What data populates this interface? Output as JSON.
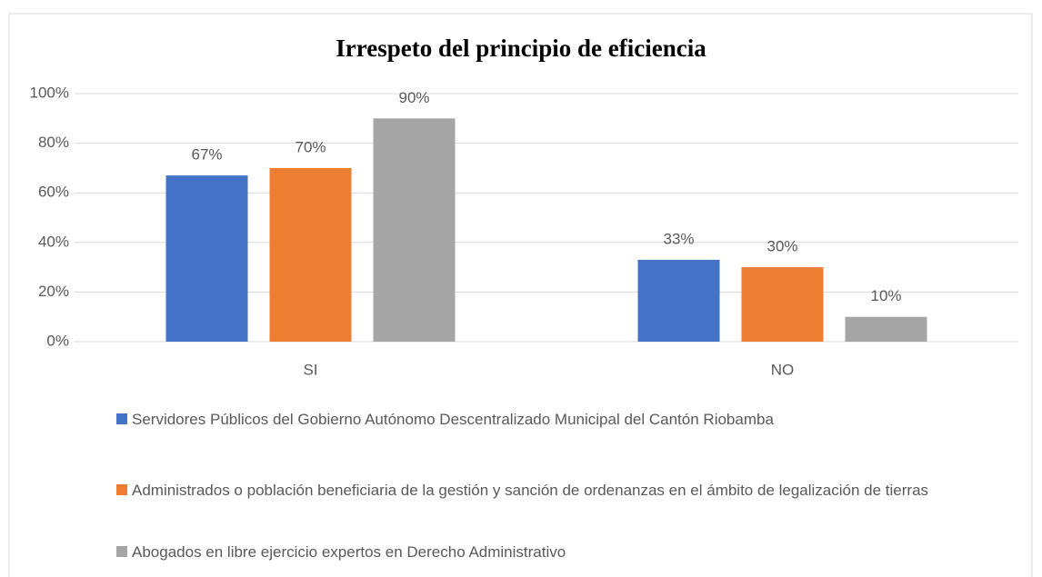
{
  "chart_data": {
    "type": "bar",
    "title": "Irrespeto del principio de eficiencia",
    "categories": [
      "SI",
      "NO"
    ],
    "series": [
      {
        "name": "Servidores Públicos del Gobierno Autónomo Descentralizado Municipal del Cantón Riobamba",
        "color": "#4472c4",
        "values": [
          67,
          33
        ],
        "value_labels": [
          "67%",
          "33%"
        ]
      },
      {
        "name": "Administrados o población beneficiaria de la gestión y sanción de ordenanzas en el ámbito de legalización de tierras",
        "color": "#ed7d31",
        "values": [
          70,
          30
        ],
        "value_labels": [
          "70%",
          "30%"
        ]
      },
      {
        "name": "Abogados en libre ejercicio expertos en Derecho Administrativo",
        "color": "#a5a5a5",
        "values": [
          90,
          10
        ],
        "value_labels": [
          "90%",
          "10%"
        ]
      }
    ],
    "ylim": [
      0,
      100
    ],
    "yticks": [
      {
        "value": 0,
        "label": "0%"
      },
      {
        "value": 20,
        "label": "20%"
      },
      {
        "value": 40,
        "label": "40%"
      },
      {
        "value": 60,
        "label": "60%"
      },
      {
        "value": 80,
        "label": "80%"
      },
      {
        "value": 100,
        "label": "100%"
      }
    ],
    "grid": true,
    "legend": "bottom"
  }
}
